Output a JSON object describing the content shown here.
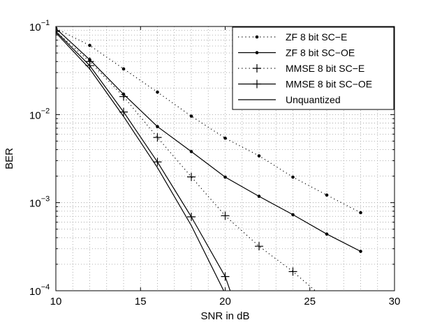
{
  "chart_data": {
    "type": "line",
    "xlabel": "SNR in dB",
    "ylabel": "BER",
    "xlim": [
      10,
      30
    ],
    "ylim": [
      0.0001,
      0.1
    ],
    "yscale": "log",
    "grid": true,
    "legend_position": "top-right",
    "x_ticks": [
      "10",
      "15",
      "20",
      "25",
      "30"
    ],
    "y_ticks": [
      {
        "value": 0.1,
        "base": "10",
        "exp": "−1"
      },
      {
        "value": 0.01,
        "base": "10",
        "exp": "−2"
      },
      {
        "value": 0.001,
        "base": "10",
        "exp": "−3"
      },
      {
        "value": 0.0001,
        "base": "10",
        "exp": "−4"
      }
    ],
    "series": [
      {
        "name": "ZF 8 bit SC−E",
        "line": "dotted",
        "marker": "dot",
        "x": [
          10,
          12,
          14,
          16,
          18,
          20,
          22,
          24,
          26,
          28
        ],
        "y": [
          0.095,
          0.061,
          0.033,
          0.018,
          0.0096,
          0.0054,
          0.0034,
          0.00195,
          0.00122,
          0.00077
        ]
      },
      {
        "name": "ZF 8 bit SC−OE",
        "line": "solid",
        "marker": "dot",
        "x": [
          10,
          12,
          14,
          16,
          18,
          20,
          22,
          24,
          26,
          28
        ],
        "y": [
          0.095,
          0.042,
          0.017,
          0.0073,
          0.0038,
          0.00195,
          0.00118,
          0.00073,
          0.00044,
          0.00028
        ]
      },
      {
        "name": "MMSE 8 bit SC−E",
        "line": "dotted",
        "marker": "plus",
        "x": [
          10,
          12,
          14,
          16,
          18,
          20,
          22,
          24,
          26
        ],
        "y": [
          0.088,
          0.04,
          0.016,
          0.0055,
          0.00196,
          0.00071,
          0.00032,
          0.000165,
          7.73e-05
        ]
      },
      {
        "name": "MMSE 8 bit SC−OE",
        "line": "solid",
        "marker": "plus",
        "x": [
          10,
          12,
          14,
          16,
          18,
          20,
          20.5
        ],
        "y": [
          0.088,
          0.036,
          0.0107,
          0.0029,
          0.00069,
          0.000145,
          7.73e-05
        ]
      },
      {
        "name": "Unquantized",
        "line": "solid",
        "marker": "none",
        "x": [
          10,
          12,
          14,
          16,
          18,
          20.2
        ],
        "y": [
          0.085,
          0.033,
          0.0095,
          0.0025,
          0.00055,
          7.73e-05
        ]
      }
    ]
  }
}
